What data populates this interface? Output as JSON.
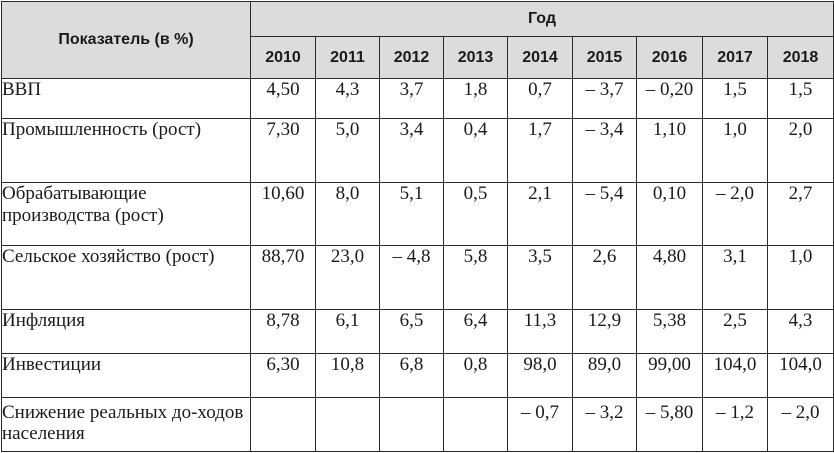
{
  "header": {
    "indicator_label": "Показатель (в %)",
    "group_label": "Год",
    "years": [
      "2010",
      "2011",
      "2012",
      "2013",
      "2014",
      "2015",
      "2016",
      "2017",
      "2018"
    ]
  },
  "rows": [
    {
      "label": "ВВП",
      "values": [
        "4,50",
        "4,3",
        "3,7",
        "1,8",
        "0,7",
        "– 3,7",
        "– 0,20",
        "1,5",
        "1,5"
      ]
    },
    {
      "label": "Промышленность (рост)",
      "values": [
        "7,30",
        "5,0",
        "3,4",
        "0,4",
        "1,7",
        "– 3,4",
        "1,10",
        "1,0",
        "2,0"
      ]
    },
    {
      "label": "Обрабатывающие производства (рост)",
      "values": [
        "10,60",
        "8,0",
        "5,1",
        "0,5",
        "2,1",
        "– 5,4",
        "0,10",
        "– 2,0",
        "2,7"
      ]
    },
    {
      "label": "Сельское хозяйство (рост)",
      "values": [
        "88,70",
        "23,0",
        "– 4,8",
        "5,8",
        "3,5",
        "2,6",
        "4,80",
        "3,1",
        "1,0"
      ]
    },
    {
      "label": "Инфляция",
      "values": [
        "8,78",
        "6,1",
        "6,5",
        "6,4",
        "11,3",
        "12,9",
        "5,38",
        "2,5",
        "4,3"
      ]
    },
    {
      "label": "Инвестиции",
      "values": [
        "6,30",
        "10,8",
        "6,8",
        "0,8",
        "98,0",
        "89,0",
        "99,00",
        "104,0",
        "104,0"
      ]
    },
    {
      "label": "Снижение реальных до-ходов населения",
      "values": [
        "",
        "",
        "",
        "",
        "– 0,7",
        "– 3,2",
        "– 5,80",
        "– 1,2",
        "– 2,0"
      ]
    }
  ]
}
